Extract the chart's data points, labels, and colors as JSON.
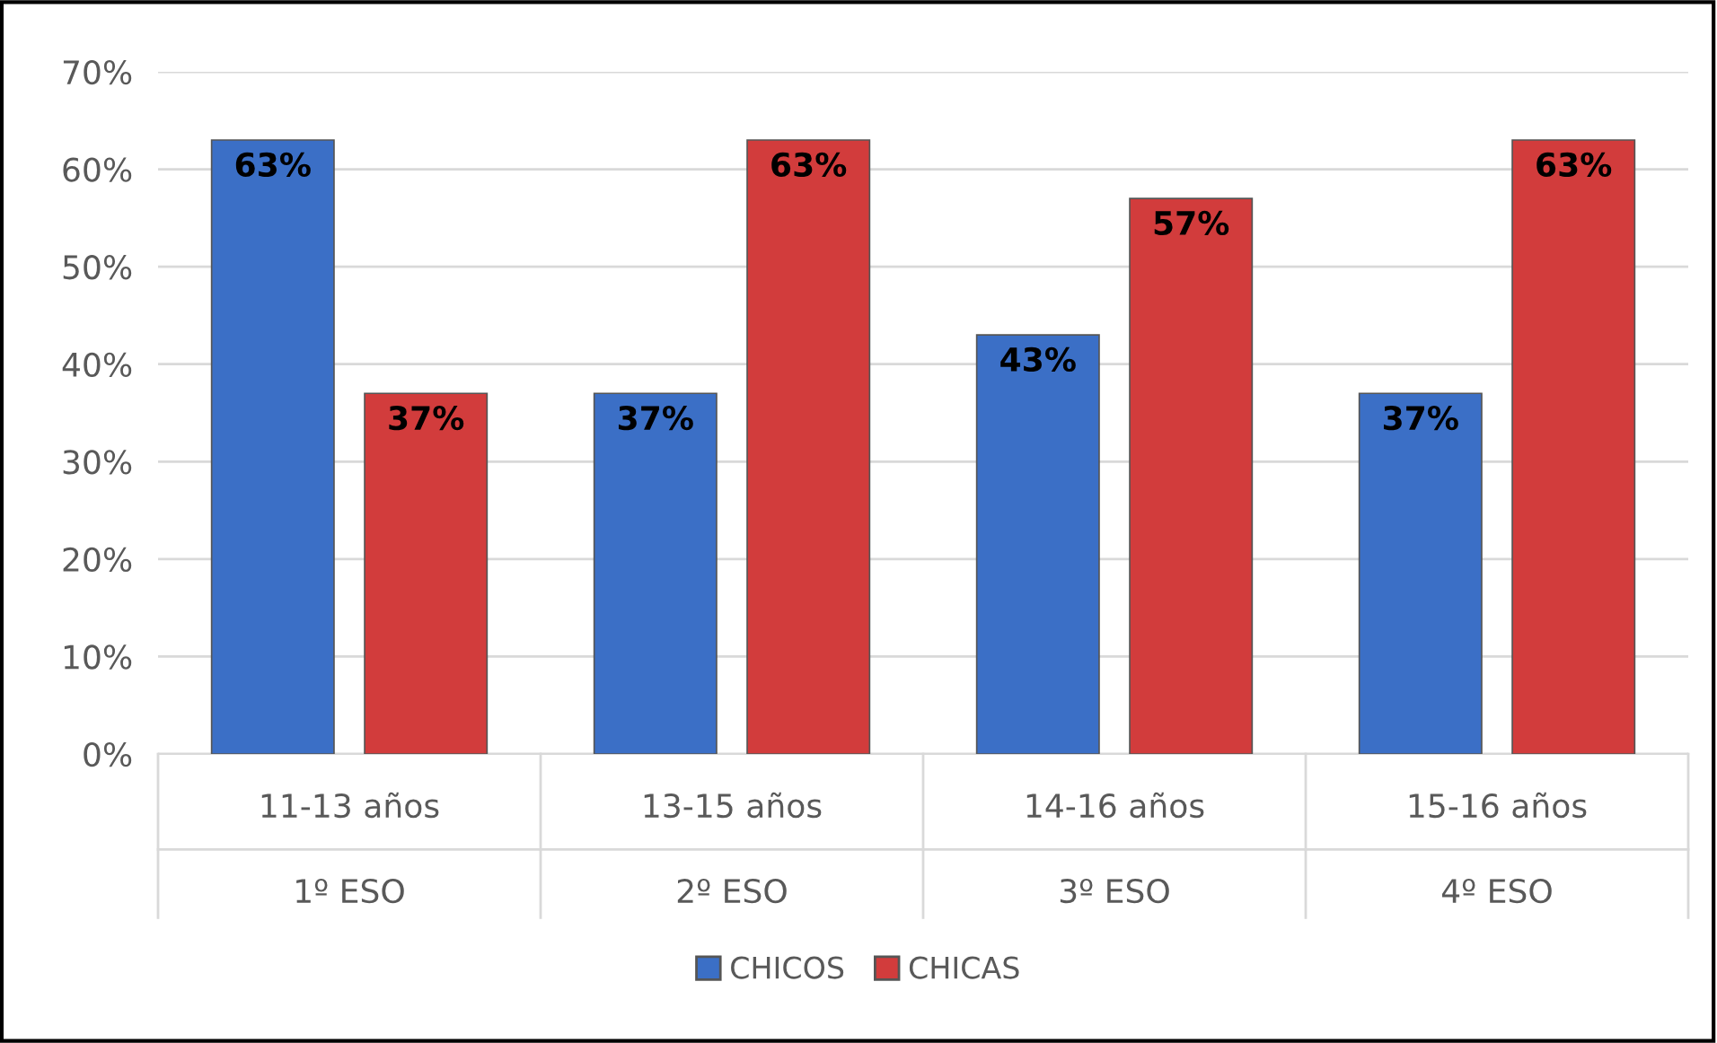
{
  "chart_data": {
    "type": "bar",
    "categories": [
      "11-13 años\n1º ESO",
      "13-15 años\n2º ESO",
      "14-16 años\n3º ESO",
      "15-16 años\n4º ESO"
    ],
    "series": [
      {
        "name": "CHICOS",
        "color": "#3b6fc6",
        "values": [
          63,
          37,
          43,
          37
        ]
      },
      {
        "name": "CHICAS",
        "color": "#d23c3c",
        "values": [
          37,
          63,
          57,
          63
        ]
      }
    ],
    "ylim": [
      0,
      70
    ],
    "yticks": [
      {
        "value": 0,
        "label": "0%"
      },
      {
        "value": 10,
        "label": "10%"
      },
      {
        "value": 20,
        "label": "20%"
      },
      {
        "value": 30,
        "label": "30%"
      },
      {
        "value": 40,
        "label": "40%"
      },
      {
        "value": 50,
        "label": "50%"
      },
      {
        "value": 60,
        "label": "60%"
      },
      {
        "value": 70,
        "label": "70%"
      }
    ],
    "value_labels": [
      [
        "63%",
        "37%",
        "43%",
        "37%"
      ],
      [
        "37%",
        "63%",
        "57%",
        "63%"
      ]
    ],
    "grid": "y",
    "legend": "bottom"
  }
}
